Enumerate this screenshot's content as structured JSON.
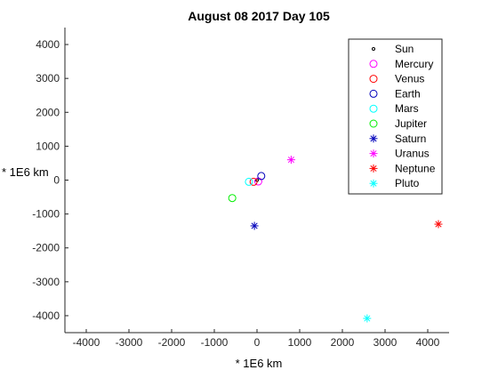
{
  "chart_data": {
    "type": "scatter",
    "title": "August 08 2017 Day 105",
    "xlabel": "* 1E6 km",
    "ylabel": "* 1E6 km",
    "xlim": [
      -4500,
      4500
    ],
    "ylim": [
      -4500,
      4500
    ],
    "x_ticks": [
      -4000,
      -3000,
      -2000,
      -1000,
      0,
      1000,
      2000,
      3000,
      4000
    ],
    "y_ticks": [
      -4000,
      -3000,
      -2000,
      -1000,
      0,
      1000,
      2000,
      3000,
      4000
    ],
    "grid": false,
    "legend_position": "top-right",
    "series": [
      {
        "name": "Sun",
        "marker": "dot",
        "color": "#000000",
        "x": 0,
        "y": 0
      },
      {
        "name": "Mercury",
        "marker": "circle",
        "color": "#ff00ff",
        "x": 30,
        "y": -40
      },
      {
        "name": "Venus",
        "marker": "circle",
        "color": "#ff0000",
        "x": -80,
        "y": -50
      },
      {
        "name": "Earth",
        "marker": "circle",
        "color": "#0000bb",
        "x": 100,
        "y": 120
      },
      {
        "name": "Mars",
        "marker": "circle",
        "color": "#00ffff",
        "x": -190,
        "y": -50
      },
      {
        "name": "Jupiter",
        "marker": "circle",
        "color": "#00ee00",
        "x": -580,
        "y": -530
      },
      {
        "name": "Saturn",
        "marker": "asterisk",
        "color": "#0000bb",
        "x": -60,
        "y": -1350
      },
      {
        "name": "Uranus",
        "marker": "asterisk",
        "color": "#ff00ff",
        "x": 800,
        "y": 600
      },
      {
        "name": "Neptune",
        "marker": "asterisk",
        "color": "#ff0000",
        "x": 4250,
        "y": -1300
      },
      {
        "name": "Pluto",
        "marker": "asterisk",
        "color": "#00ffff",
        "x": 2580,
        "y": -4080
      }
    ]
  }
}
